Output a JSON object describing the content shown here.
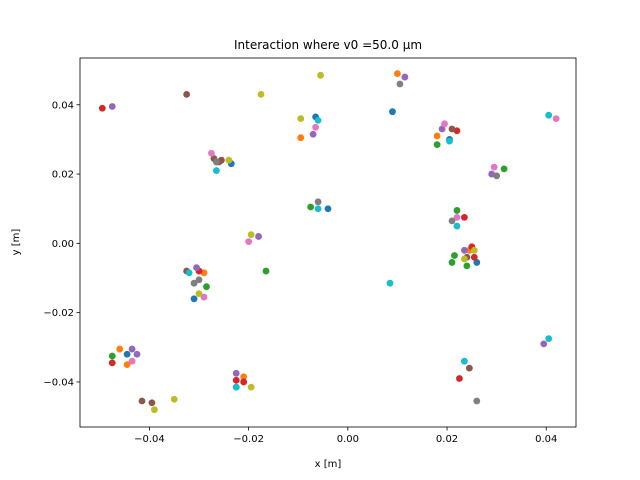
{
  "chart_data": {
    "type": "scatter",
    "title": "Interaction where v0 =50.0 µm",
    "xlabel": "x [m]",
    "ylabel": "y [m]",
    "xlim": [
      -0.054,
      0.046
    ],
    "ylim": [
      -0.053,
      0.0535
    ],
    "xticks": [
      -0.04,
      -0.02,
      0.0,
      0.02,
      0.04
    ],
    "xtick_labels": [
      "−0.04",
      "−0.02",
      "0.00",
      "0.02",
      "0.04"
    ],
    "yticks": [
      -0.04,
      -0.02,
      0.0,
      0.02,
      0.04
    ],
    "ytick_labels": [
      "−0.04",
      "−0.02",
      "0.00",
      "0.02",
      "0.04"
    ],
    "grid": false,
    "series": [
      {
        "color": "#1f77b4",
        "points": [
          [
            -0.0225,
            -0.0415
          ],
          [
            -0.031,
            -0.016
          ],
          [
            -0.0445,
            -0.032
          ],
          [
            0.009,
            0.038
          ],
          [
            0.0205,
            0.03
          ],
          [
            -0.0235,
            0.023
          ],
          [
            -0.0065,
            0.0365
          ],
          [
            -0.004,
            0.01
          ],
          [
            0.026,
            -0.0055
          ]
        ]
      },
      {
        "color": "#ff7f0e",
        "points": [
          [
            -0.046,
            -0.0305
          ],
          [
            -0.029,
            -0.0085
          ],
          [
            -0.021,
            -0.0385
          ],
          [
            0.01,
            0.049
          ],
          [
            0.018,
            0.031
          ],
          [
            -0.0095,
            0.0305
          ],
          [
            0.0245,
            -0.002
          ],
          [
            -0.0445,
            -0.035
          ]
        ]
      },
      {
        "color": "#2ca02c",
        "points": [
          [
            -0.0475,
            -0.0325
          ],
          [
            -0.0285,
            -0.0125
          ],
          [
            -0.0165,
            -0.008
          ],
          [
            -0.0075,
            0.0105
          ],
          [
            0.018,
            0.0285
          ],
          [
            0.0315,
            0.0215
          ],
          [
            0.022,
            0.0095
          ],
          [
            0.0215,
            -0.0035
          ],
          [
            0.021,
            -0.0055
          ],
          [
            0.024,
            -0.0065
          ]
        ]
      },
      {
        "color": "#d62728",
        "points": [
          [
            -0.0495,
            0.039
          ],
          [
            -0.0475,
            -0.0345
          ],
          [
            -0.0225,
            -0.0395
          ],
          [
            -0.021,
            -0.04
          ],
          [
            -0.03,
            -0.008
          ],
          [
            0.022,
            0.0325
          ],
          [
            0.0235,
            0.0075
          ],
          [
            0.025,
            -0.001
          ],
          [
            0.0225,
            -0.039
          ],
          [
            0.0255,
            -0.004
          ]
        ]
      },
      {
        "color": "#9467bd",
        "points": [
          [
            -0.0475,
            0.0395
          ],
          [
            -0.0435,
            -0.0305
          ],
          [
            -0.0425,
            -0.032
          ],
          [
            -0.0305,
            -0.007
          ],
          [
            -0.018,
            0.002
          ],
          [
            -0.0225,
            -0.0375
          ],
          [
            0.0115,
            0.048
          ],
          [
            0.019,
            0.033
          ],
          [
            -0.007,
            0.0315
          ],
          [
            0.029,
            0.02
          ],
          [
            0.0235,
            -0.002
          ],
          [
            0.0395,
            -0.029
          ]
        ]
      },
      {
        "color": "#8c564b",
        "points": [
          [
            -0.0415,
            -0.0455
          ],
          [
            -0.0395,
            -0.046
          ],
          [
            -0.0325,
            0.043
          ],
          [
            -0.0325,
            -0.008
          ],
          [
            -0.0255,
            0.024
          ],
          [
            -0.027,
            0.0245
          ],
          [
            -0.026,
            0.0235
          ],
          [
            0.021,
            0.033
          ],
          [
            0.0245,
            -0.036
          ],
          [
            0.024,
            -0.004
          ]
        ]
      },
      {
        "color": "#e377c2",
        "points": [
          [
            -0.0275,
            0.026
          ],
          [
            -0.0435,
            -0.034
          ],
          [
            -0.029,
            -0.0155
          ],
          [
            -0.02,
            0.0005
          ],
          [
            -0.0065,
            0.0335
          ],
          [
            0.0195,
            0.0345
          ],
          [
            0.022,
            0.0075
          ],
          [
            0.0295,
            0.022
          ],
          [
            0.042,
            0.036
          ]
        ]
      },
      {
        "color": "#7f7f7f",
        "points": [
          [
            -0.03,
            -0.0105
          ],
          [
            -0.031,
            -0.0115
          ],
          [
            -0.0265,
            0.0235
          ],
          [
            -0.006,
            0.012
          ],
          [
            0.0105,
            0.046
          ],
          [
            0.021,
            0.0065
          ],
          [
            0.026,
            -0.0455
          ],
          [
            0.03,
            0.0195
          ]
        ]
      },
      {
        "color": "#bcbd22",
        "points": [
          [
            -0.039,
            -0.048
          ],
          [
            -0.035,
            -0.045
          ],
          [
            -0.0195,
            -0.0415
          ],
          [
            -0.0195,
            0.0025
          ],
          [
            -0.03,
            -0.0145
          ],
          [
            -0.0175,
            0.043
          ],
          [
            -0.0055,
            0.0485
          ],
          [
            -0.0095,
            0.036
          ],
          [
            -0.024,
            0.024
          ],
          [
            0.0255,
            -0.002
          ],
          [
            0.0235,
            -0.0045
          ]
        ]
      },
      {
        "color": "#17becf",
        "points": [
          [
            -0.0225,
            -0.0415
          ],
          [
            -0.0265,
            0.021
          ],
          [
            -0.032,
            -0.0085
          ],
          [
            0.0085,
            -0.0115
          ],
          [
            -0.006,
            0.0355
          ],
          [
            -0.006,
            0.01
          ],
          [
            0.0205,
            0.0295
          ],
          [
            0.022,
            0.005
          ],
          [
            0.0235,
            -0.034
          ],
          [
            0.0405,
            0.037
          ],
          [
            0.0405,
            -0.0275
          ]
        ]
      }
    ]
  }
}
